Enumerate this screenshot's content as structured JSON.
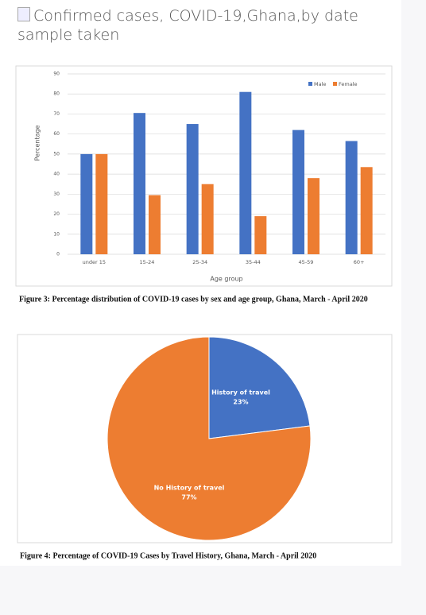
{
  "header": {
    "title": "Confirmed cases, COVID-19,Ghana,by date sample taken"
  },
  "chart_data": [
    {
      "type": "bar",
      "caption": "Figure 3: Percentage distribution of COVID-19 cases by sex and age group, Ghana, March - April 2020",
      "x_label": "Age group",
      "y_label": "Percentage",
      "categories": [
        "under 15",
        "15-24",
        "25-34",
        "35-44",
        "45-59",
        "60+"
      ],
      "series": [
        {
          "name": "Male",
          "color": "#4472c4",
          "values": [
            50,
            70.5,
            65,
            81,
            62,
            56.5
          ]
        },
        {
          "name": "Female",
          "color": "#ed7d31",
          "values": [
            50,
            29.5,
            35,
            19,
            38,
            43.5
          ]
        }
      ],
      "ylim": [
        0,
        90
      ],
      "yticks": [
        0,
        10,
        20,
        30,
        40,
        50,
        60,
        70,
        80,
        90
      ],
      "grid": true,
      "legend": "top-right"
    },
    {
      "type": "pie",
      "caption": "Figure 4: Percentage of COVID-19 Cases by Travel History, Ghana, March - April 2020",
      "categories": [
        "History of travel",
        "No History of travel"
      ],
      "values": [
        23,
        77
      ],
      "value_labels": [
        "23%",
        "77%"
      ],
      "colors": [
        "#4472c4",
        "#ed7d31"
      ]
    }
  ]
}
